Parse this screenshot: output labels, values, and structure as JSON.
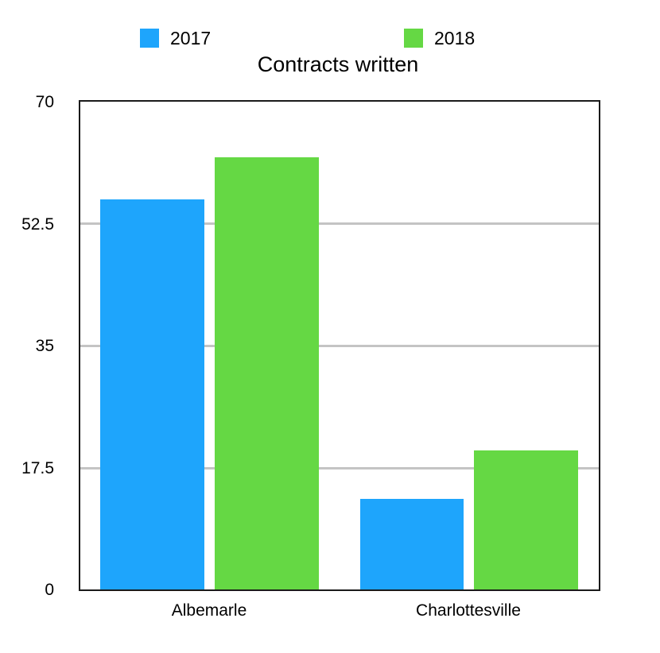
{
  "chart_data": {
    "type": "bar",
    "title": "Contracts written",
    "xlabel": "",
    "ylabel": "",
    "categories": [
      "Albemarle",
      "Charlottesville"
    ],
    "series": [
      {
        "name": "2017",
        "color": "#1ea5fc",
        "values": [
          56,
          13
        ]
      },
      {
        "name": "2018",
        "color": "#65d844",
        "values": [
          62,
          20
        ]
      }
    ],
    "ylim": [
      0,
      70
    ],
    "yticks": [
      "0",
      "17.5",
      "35",
      "52.5",
      "70"
    ],
    "grid": true,
    "legend_position": "top"
  },
  "legend": [
    {
      "label": "2017",
      "color": "#1ea5fc"
    },
    {
      "label": "2018",
      "color": "#65d844"
    }
  ]
}
